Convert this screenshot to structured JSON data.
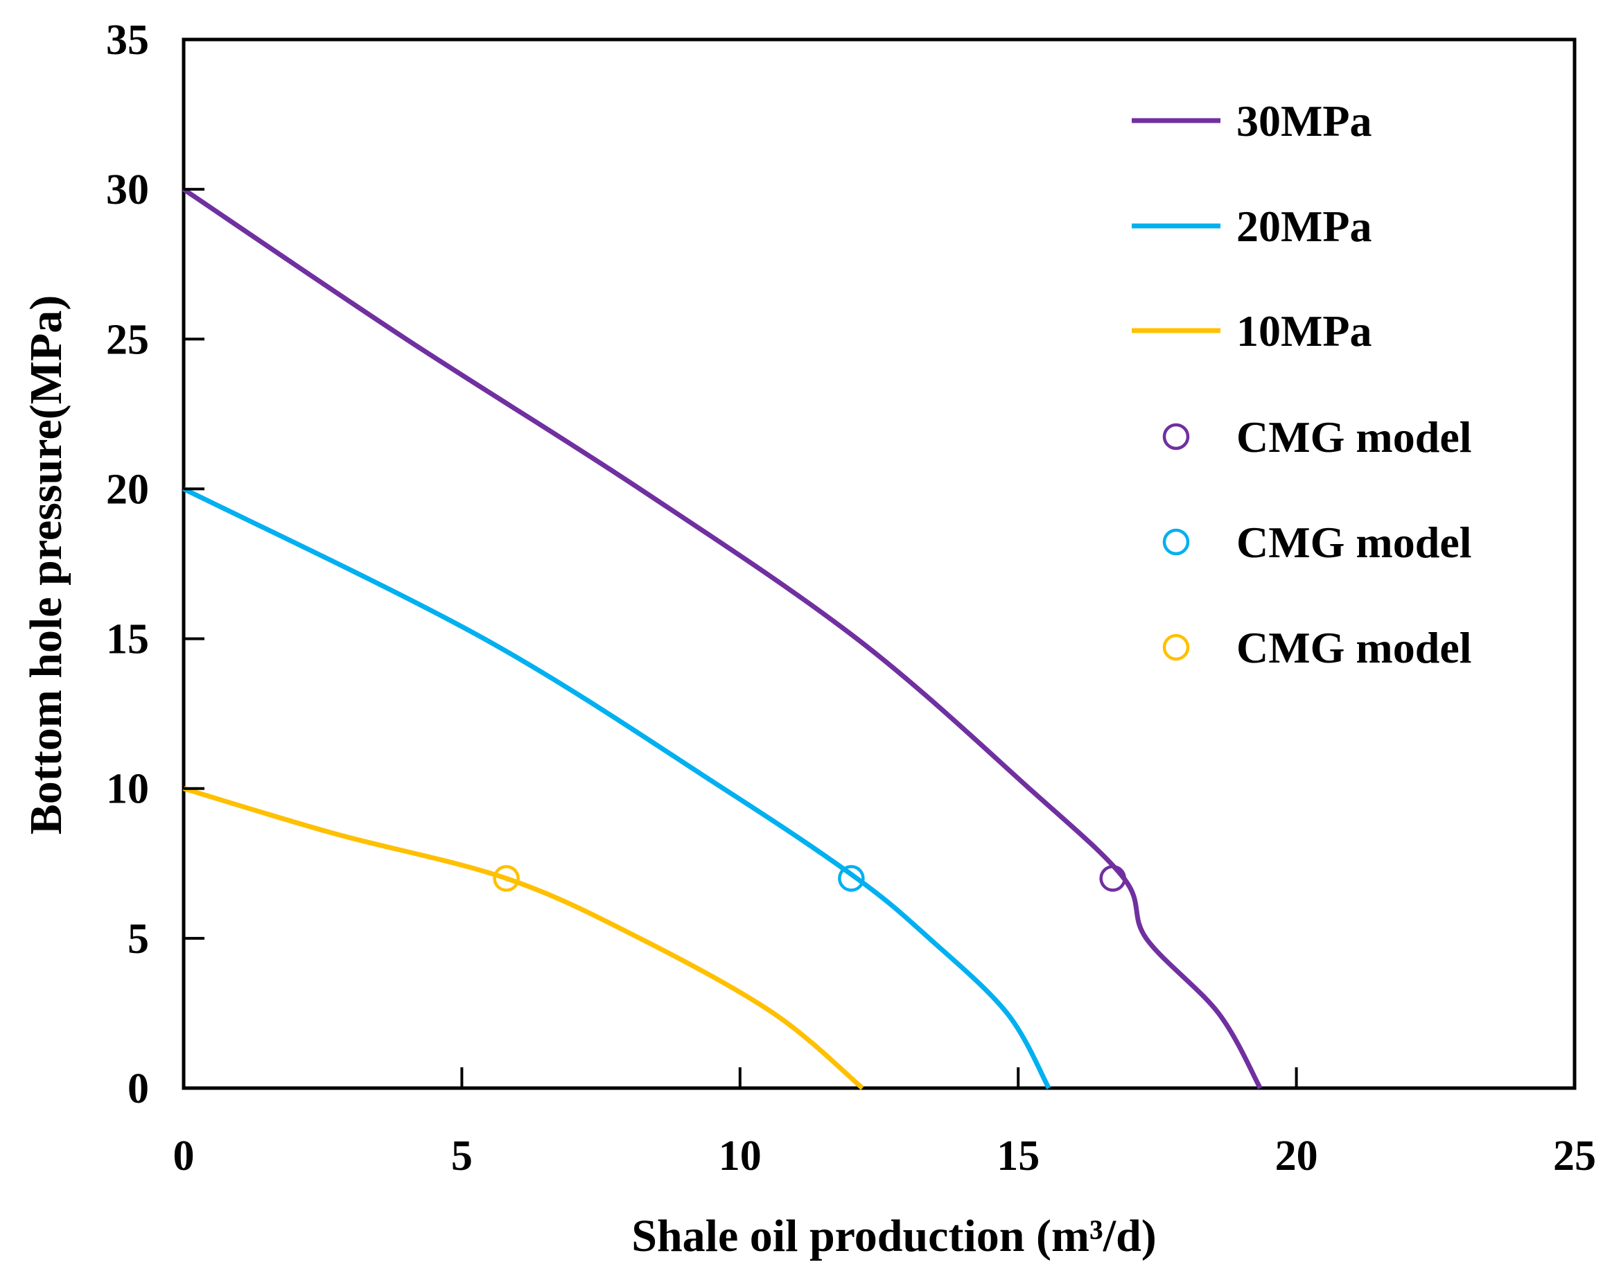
{
  "chart_data": {
    "type": "line",
    "title": "",
    "xlabel": "Shale oil production (m³/d)",
    "ylabel": "Bottom hole pressure(MPa)",
    "xlim": [
      0,
      25
    ],
    "ylim": [
      0,
      35
    ],
    "xticks": [
      0,
      5,
      10,
      15,
      20,
      25
    ],
    "yticks": [
      0,
      5,
      10,
      15,
      20,
      25,
      30,
      35
    ],
    "grid": false,
    "legend_position": "top-right",
    "series": [
      {
        "name": "30MPa",
        "kind": "line",
        "color": "#7030A0",
        "x": [
          0,
          4.0,
          8.2,
          12.1,
          15.2,
          16.9,
          17.3,
          18.6,
          19.35
        ],
        "y": [
          30,
          25,
          20,
          15,
          10,
          7,
          5,
          2.5,
          0
        ]
      },
      {
        "name": "20MPa",
        "kind": "line",
        "color": "#00B0F0",
        "x": [
          0,
          5.4,
          9.7,
          12.1,
          13.4,
          14.8,
          15.55
        ],
        "y": [
          20,
          15,
          10,
          7,
          5,
          2.5,
          0
        ]
      },
      {
        "name": "10MPa",
        "kind": "line",
        "color": "#FFC000",
        "x": [
          0,
          2.7,
          5.8,
          8.2,
          10.6,
          12.2
        ],
        "y": [
          10,
          8.5,
          7,
          5,
          2.5,
          0
        ]
      },
      {
        "name": "CMG model",
        "kind": "marker",
        "color": "#7030A0",
        "x": [
          16.7
        ],
        "y": [
          7
        ]
      },
      {
        "name": "CMG model",
        "kind": "marker",
        "color": "#00B0F0",
        "x": [
          12.0
        ],
        "y": [
          7
        ]
      },
      {
        "name": "CMG model",
        "kind": "marker",
        "color": "#FFC000",
        "x": [
          5.8
        ],
        "y": [
          7
        ]
      }
    ]
  }
}
